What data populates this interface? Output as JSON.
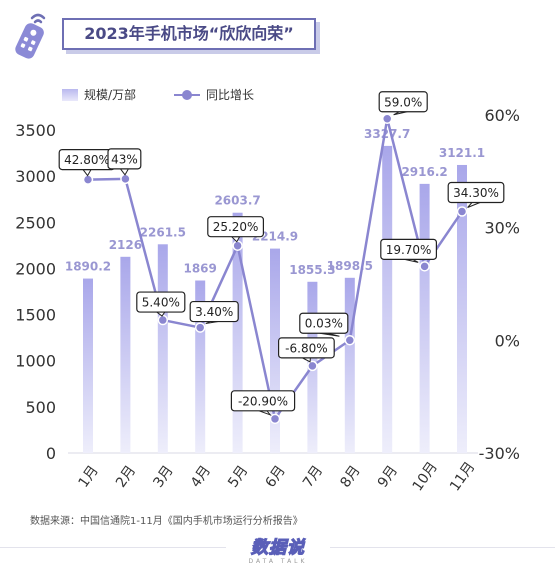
{
  "header": {
    "title": "2023年手机市场“欣欣向荣”",
    "icon": "remote-control-icon"
  },
  "legend": {
    "bar_label": "规模/万部",
    "line_label": "同比增长"
  },
  "footer": {
    "source": "数据来源：中国信通院1-11月《国内手机市场运行分析报告》",
    "logo": "数据说",
    "logo_sub": "DATA TALK"
  },
  "colors": {
    "bar_top": "#a9a7ea",
    "bar_bottom": "#eeeefb",
    "line": "#8a86d0",
    "axis_text": "#333333",
    "bar_label": "#9a97d2"
  },
  "chart_data": {
    "type": "bar",
    "categories": [
      "1月",
      "2月",
      "3月",
      "4月",
      "5月",
      "6月",
      "7月",
      "8月",
      "9月",
      "10月",
      "11月"
    ],
    "series": [
      {
        "name": "规模/万部",
        "type": "bar",
        "axis": "left",
        "values": [
          1890.2,
          2126,
          2261.5,
          1869,
          2603.7,
          2214.9,
          1855.3,
          1898.5,
          3327.7,
          2916.2,
          3121.1
        ],
        "labels": [
          "1890.2",
          "2126",
          "2261.5",
          "1869",
          "2603.7",
          "2214.9",
          "1855.3",
          "1898.5",
          "3327.7",
          "2916.2",
          "3121.1"
        ]
      },
      {
        "name": "同比增长",
        "type": "line",
        "axis": "right",
        "values": [
          42.8,
          43,
          5.4,
          3.4,
          25.2,
          -20.9,
          -6.8,
          0.03,
          59.0,
          19.7,
          34.3
        ],
        "labels": [
          "42.80%",
          "43%",
          "5.40%",
          "3.40%",
          "25.20%",
          "-20.90%",
          "-6.80%",
          "0.03%",
          "59.0%",
          "19.70%",
          "34.30%"
        ]
      }
    ],
    "y_left": {
      "min": 0,
      "max": 3500,
      "ticks": [
        "0",
        "500",
        "1000",
        "1500",
        "2000",
        "2500",
        "3000",
        "3500"
      ]
    },
    "y_right": {
      "min": -30,
      "max": 60,
      "ticks": [
        "-30%",
        "0%",
        "30%",
        "60%"
      ]
    },
    "grid": false,
    "legend_position": "top-left"
  }
}
